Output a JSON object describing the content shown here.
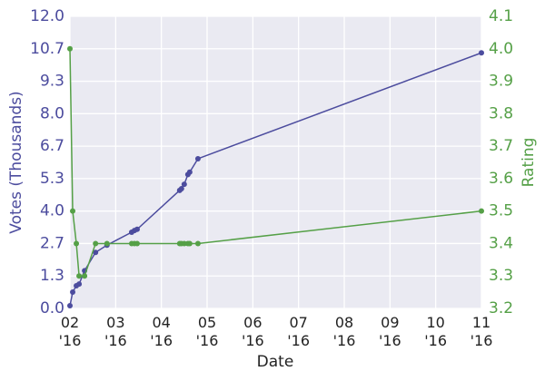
{
  "chart_data": {
    "type": "line",
    "x_label": "Date",
    "y_label": "Votes (Thousands)",
    "y2_label": "Rating",
    "x": [
      2.0,
      2.06,
      2.14,
      2.2,
      2.32,
      2.56,
      2.81,
      3.35,
      3.41,
      3.47,
      4.4,
      4.44,
      4.5,
      4.58,
      4.62,
      4.8,
      11.0
    ],
    "series": [
      {
        "name": "Votes (Thousands)",
        "color": "#4c4c9e",
        "values": [
          0.11,
          0.67,
          0.93,
          1.0,
          1.55,
          2.3,
          2.6,
          3.13,
          3.2,
          3.25,
          4.85,
          4.92,
          5.1,
          5.5,
          5.6,
          6.15,
          10.5
        ]
      },
      {
        "name": "Rating",
        "color": "#55a047",
        "axis": "y2",
        "values": [
          4.0,
          3.5,
          3.4,
          3.3,
          3.3,
          3.4,
          3.4,
          3.4,
          3.4,
          3.4,
          3.4,
          3.4,
          3.4,
          3.4,
          3.4,
          3.4,
          3.5
        ]
      }
    ],
    "xlim": [
      2,
      11
    ],
    "xticks": [
      {
        "value": 2,
        "label": "02\n'16"
      },
      {
        "value": 3,
        "label": "03\n'16"
      },
      {
        "value": 4,
        "label": "04\n'16"
      },
      {
        "value": 5,
        "label": "05\n'16"
      },
      {
        "value": 6,
        "label": "06\n'16"
      },
      {
        "value": 7,
        "label": "07\n'16"
      },
      {
        "value": 8,
        "label": "08\n'16"
      },
      {
        "value": 9,
        "label": "09\n'16"
      },
      {
        "value": 10,
        "label": "10\n'16"
      },
      {
        "value": 11,
        "label": "11\n'16"
      }
    ],
    "ylim": [
      0,
      12
    ],
    "yticks": [
      {
        "value": 0,
        "label": "0.0"
      },
      {
        "value": 1.3333,
        "label": "1.3"
      },
      {
        "value": 2.6667,
        "label": "2.7"
      },
      {
        "value": 4,
        "label": "4.0"
      },
      {
        "value": 5.3333,
        "label": "5.3"
      },
      {
        "value": 6.6667,
        "label": "6.7"
      },
      {
        "value": 8,
        "label": "8.0"
      },
      {
        "value": 9.3333,
        "label": "9.3"
      },
      {
        "value": 10.6667,
        "label": "10.7"
      },
      {
        "value": 12,
        "label": "12.0"
      }
    ],
    "y2lim": [
      3.2,
      4.1
    ],
    "y2ticks": [
      3.2,
      3.3,
      3.4,
      3.5,
      3.6,
      3.7,
      3.8,
      3.9,
      {
        "value": 4,
        "label": "4.0"
      },
      4.1
    ],
    "grid": true,
    "background": "#eaeaf2"
  }
}
